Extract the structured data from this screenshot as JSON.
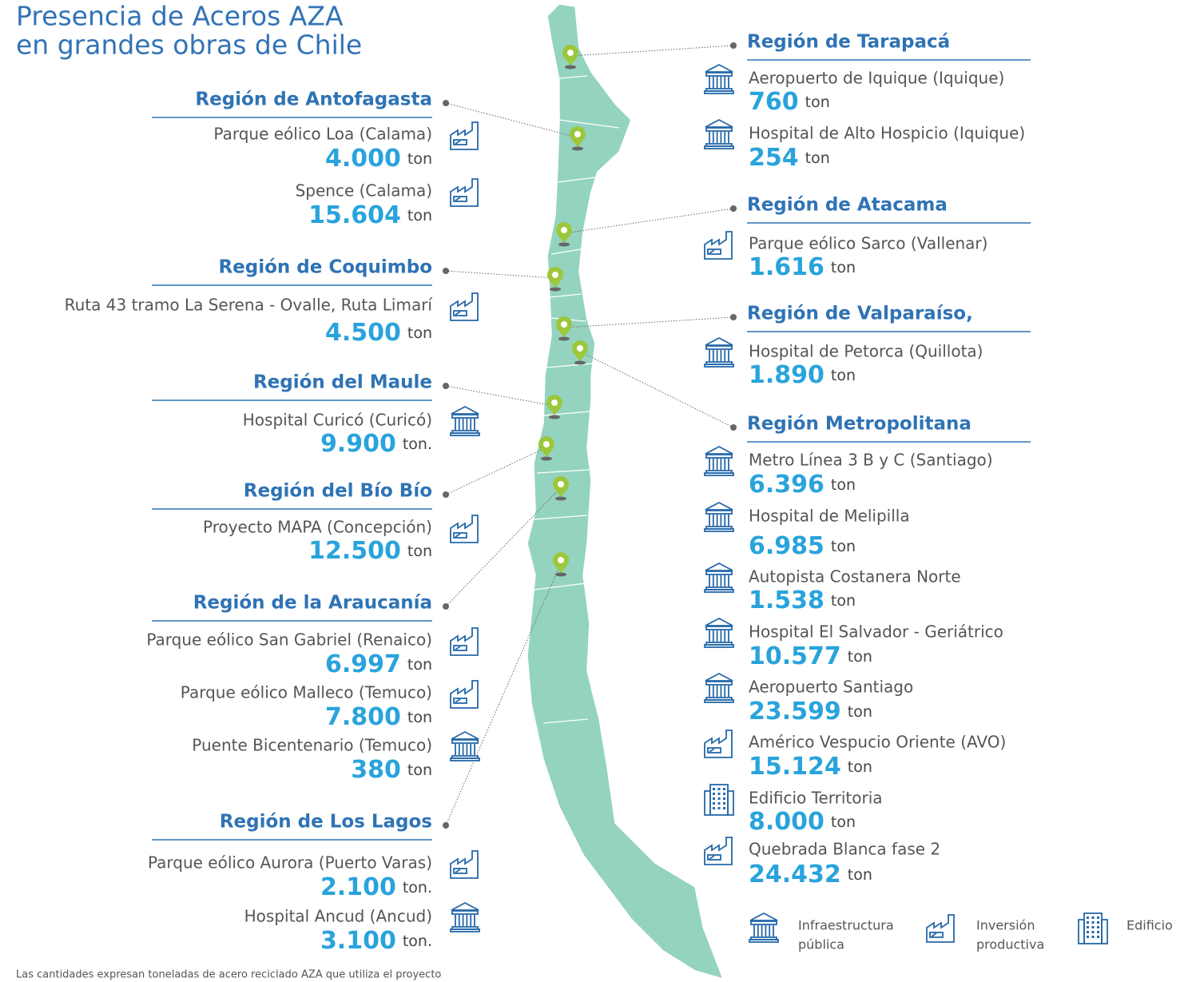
{
  "title_lines": [
    "Presencia de Aceros AZA",
    "en grandes obras de Chile"
  ],
  "regions": [
    {
      "name": "Región de Antofagasta",
      "projects": [
        {
          "name": "Parque eólico Loa (Calama)",
          "amount": "4.000",
          "unit": "ton",
          "icon": "industry"
        },
        {
          "name": "Spence (Calama)",
          "amount": "15.604",
          "unit": "ton",
          "icon": "industry"
        }
      ]
    },
    {
      "name": "Región de Coquimbo",
      "projects": [
        {
          "name": "Ruta 43 tramo La Serena - Ovalle, Ruta Limarí",
          "amount": "4.500",
          "unit": "ton",
          "icon": "industry"
        }
      ]
    },
    {
      "name": "Región del Maule",
      "projects": [
        {
          "name": "Hospital Curicó (Curicó)",
          "amount": "9.900",
          "unit": "ton.",
          "icon": "infra"
        }
      ]
    },
    {
      "name": "Región del Bío Bío",
      "projects": [
        {
          "name": "Proyecto MAPA (Concepción)",
          "amount": "12.500",
          "unit": "ton",
          "icon": "industry"
        }
      ]
    },
    {
      "name": "Región de la Araucanía",
      "projects": [
        {
          "name": "Parque eólico San Gabriel (Renaico)",
          "amount": "6.997",
          "unit": "ton",
          "icon": "industry"
        },
        {
          "name": "Parque eólico Malleco (Temuco)",
          "amount": "7.800",
          "unit": "ton",
          "icon": "industry"
        },
        {
          "name": "Puente Bicentenario (Temuco)",
          "amount": "380",
          "unit": "ton",
          "icon": "infra"
        }
      ]
    },
    {
      "name": "Región de Los Lagos",
      "projects": [
        {
          "name": "Parque eólico Aurora (Puerto Varas)",
          "amount": "2.100",
          "unit": "ton.",
          "icon": "industry"
        },
        {
          "name": "Hospital Ancud (Ancud)",
          "amount": "3.100",
          "unit": "ton.",
          "icon": "infra"
        }
      ]
    },
    {
      "name": "Región de Tarapacá",
      "projects": [
        {
          "name": "Aeropuerto de Iquique (Iquique)",
          "amount": "760",
          "unit": "ton",
          "icon": "infra"
        },
        {
          "name": "Hospital de Alto Hospicio (Iquique)",
          "amount": "254",
          "unit": "ton",
          "icon": "infra"
        }
      ]
    },
    {
      "name": "Región de Atacama",
      "projects": [
        {
          "name": "Parque eólico Sarco (Vallenar)",
          "amount": "1.616",
          "unit": "ton",
          "icon": "industry"
        }
      ]
    },
    {
      "name": "Región de Valparaíso,",
      "projects": [
        {
          "name": "Hospital de Petorca (Quillota)",
          "amount": "1.890",
          "unit": "ton",
          "icon": "infra"
        }
      ]
    },
    {
      "name": "Región Metropolitana",
      "projects": [
        {
          "name": "Metro Línea 3 B y C (Santiago)",
          "amount": "6.396",
          "unit": "ton",
          "icon": "infra"
        },
        {
          "name": "Hospital de Melipilla",
          "amount": "6.985",
          "unit": "ton",
          "icon": "infra"
        },
        {
          "name": "Autopista Costanera Norte",
          "amount": "1.538",
          "unit": "ton",
          "icon": "infra"
        },
        {
          "name": "Hospital El Salvador - Geriátrico",
          "amount": "10.577",
          "unit": "ton",
          "icon": "infra"
        },
        {
          "name": "Aeropuerto Santiago",
          "amount": "23.599",
          "unit": "ton",
          "icon": "infra"
        },
        {
          "name": "Américo Vespucio Oriente (AVO)",
          "amount": "15.124",
          "unit": "ton",
          "icon": "industry"
        },
        {
          "name": "Edificio Territoria",
          "amount": "8.000",
          "unit": "ton",
          "icon": "building"
        },
        {
          "name": "Quebrada Blanca fase 2",
          "amount": "24.432",
          "unit": "ton",
          "icon": "industry"
        }
      ]
    }
  ],
  "legend": [
    {
      "icon": "infra",
      "lines": [
        "Infraestructura",
        "pública"
      ]
    },
    {
      "icon": "industry",
      "lines": [
        "Inversión",
        "productiva"
      ]
    },
    {
      "icon": "building",
      "lines": [
        "Edificio"
      ]
    }
  ],
  "footnote": "Las cantidades expresan toneladas de acero reciclado AZA que utiliza el proyecto"
}
